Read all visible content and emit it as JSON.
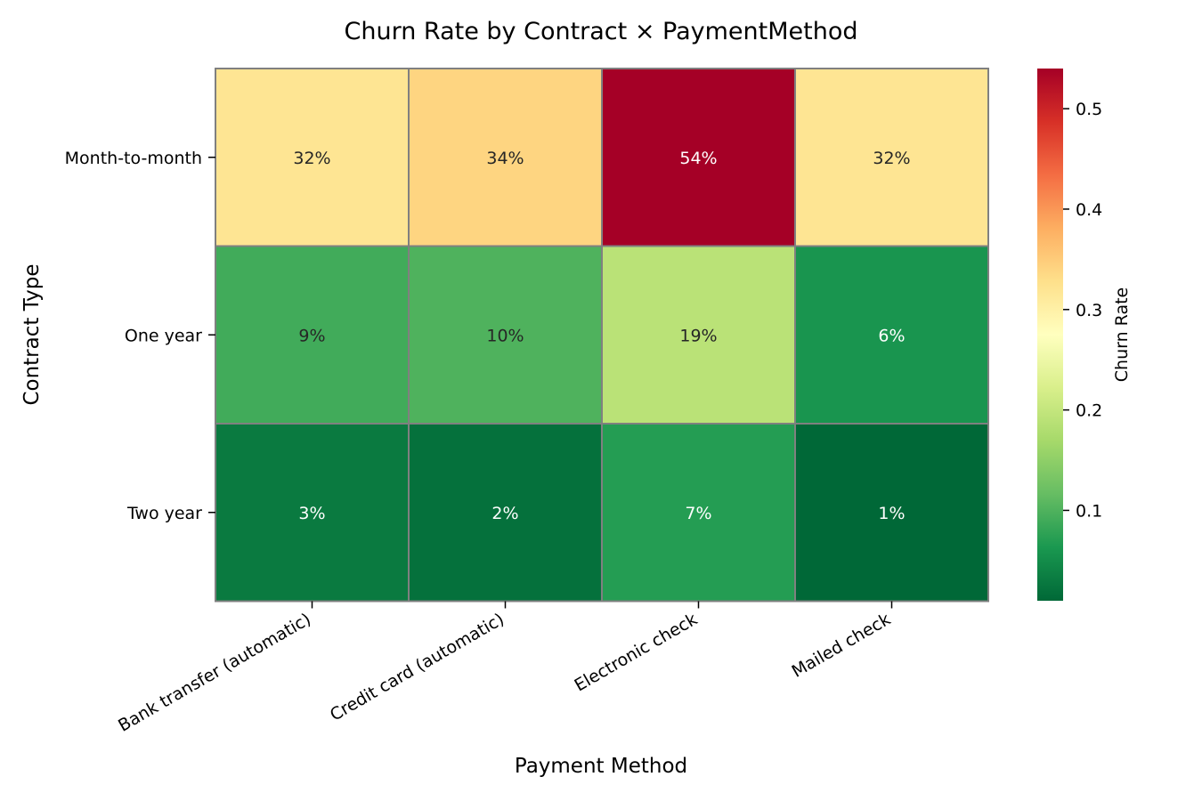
{
  "chart_data": {
    "type": "heatmap",
    "title": "Churn Rate by Contract × PaymentMethod",
    "xlabel": "Payment Method",
    "ylabel": "Contract Type",
    "x_categories": [
      "Bank transfer (automatic)",
      "Credit card (automatic)",
      "Electronic check",
      "Mailed check"
    ],
    "y_categories": [
      "Month-to-month",
      "One year",
      "Two year"
    ],
    "values": [
      [
        0.32,
        0.34,
        0.54,
        0.32
      ],
      [
        0.09,
        0.1,
        0.19,
        0.06
      ],
      [
        0.03,
        0.02,
        0.07,
        0.01
      ]
    ],
    "cell_labels": [
      [
        "32%",
        "34%",
        "54%",
        "32%"
      ],
      [
        "9%",
        "10%",
        "19%",
        "6%"
      ],
      [
        "3%",
        "2%",
        "7%",
        "1%"
      ]
    ],
    "colorbar": {
      "label": "Churn Rate",
      "range": [
        0.01,
        0.54
      ],
      "ticks": [
        0.1,
        0.2,
        0.3,
        0.4,
        0.5
      ],
      "tick_labels": [
        "0.1",
        "0.2",
        "0.3",
        "0.4",
        "0.5"
      ],
      "colormap": "RdYlGn_r",
      "colors": [
        "#006837",
        "#1a9850",
        "#66bd63",
        "#a6d96a",
        "#d9ef8b",
        "#ffffbf",
        "#fee08b",
        "#fdae61",
        "#f46d43",
        "#d73027",
        "#a50026"
      ]
    },
    "cell_border_color": "#808080"
  }
}
